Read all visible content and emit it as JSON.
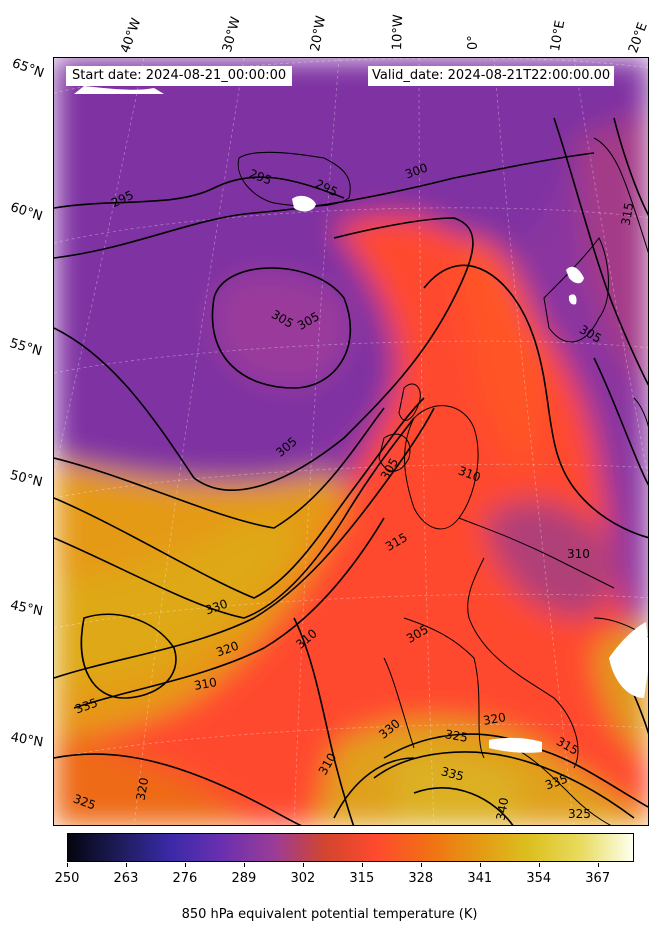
{
  "header": {
    "start_date": "Start date: 2024-08-21_00:00:00",
    "valid_date": "Valid_date: 2024-08-21T22:00:00.00"
  },
  "longitude_labels": [
    "40°W",
    "30°W",
    "20°W",
    "10°W",
    "0°",
    "10°E",
    "20°E"
  ],
  "latitude_labels": [
    "65°N",
    "60°N",
    "55°N",
    "50°N",
    "45°N",
    "40°N"
  ],
  "contour_labels": [
    "295",
    "295",
    "295",
    "300",
    "305",
    "305",
    "305",
    "305",
    "310",
    "310",
    "310",
    "310",
    "310",
    "315",
    "315",
    "315",
    "320",
    "320",
    "320",
    "325",
    "325",
    "325",
    "330",
    "330",
    "335",
    "335",
    "335",
    "340",
    "305",
    "305"
  ],
  "colorbar": {
    "title": "850 hPa equivalent potential temperature (K)",
    "tick_labels": [
      "250",
      "263",
      "276",
      "289",
      "302",
      "315",
      "328",
      "341",
      "354",
      "367"
    ],
    "min": 250,
    "max": 375,
    "colormap": "CMRmap-like",
    "colors": [
      "#05050f",
      "#1e1c5a",
      "#3a2aa8",
      "#6a30b0",
      "#9a3c98",
      "#d2452e",
      "#ff4a2e",
      "#f26f14",
      "#e49a14",
      "#dcc020",
      "#e8dc60",
      "#fffff0"
    ]
  }
}
